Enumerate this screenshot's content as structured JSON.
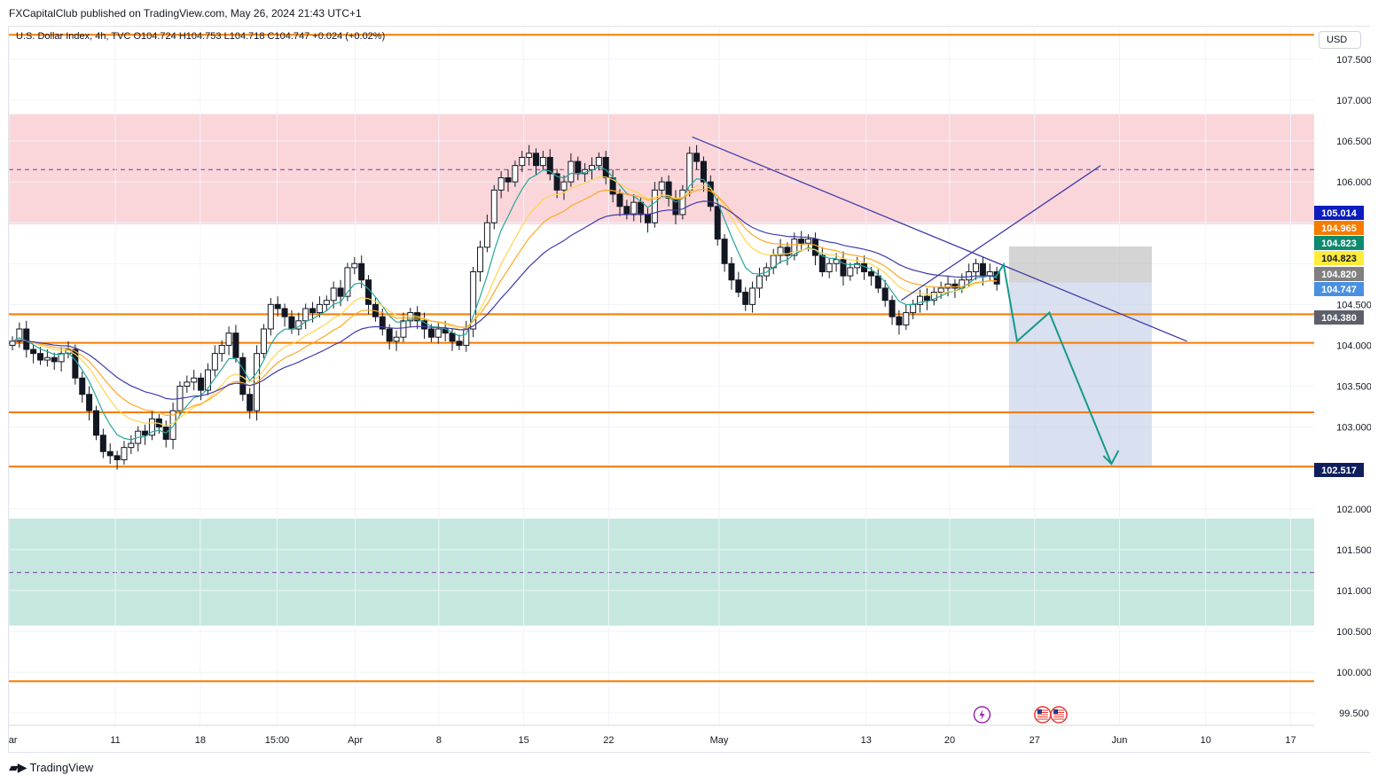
{
  "header": {
    "publisher": "FXCapitalClub published on TradingView.com, May 26, 2024 21:43 UTC+1",
    "symbol_line": "U.S. Dollar Index, 4h, TVC  O104.724  H104.753  L104.718  C104.747  +0.024 (+0.02%)",
    "currency": "USD"
  },
  "footer": {
    "brand": "TradingView"
  },
  "colors": {
    "up": "#131722",
    "down": "#131722",
    "level": "#f57c00",
    "supply": "#f8c8cd",
    "demand": "#b2dfd6",
    "trend": "#3f3bab",
    "projection": "#17998a",
    "target_box": "#c9d3e8",
    "stop_box": "#b0b0b0"
  },
  "chart_data": {
    "type": "candlestick",
    "symbol": "U.S. Dollar Index",
    "interval": "4h",
    "ylim": [
      99.35,
      107.9
    ],
    "price_ticks": [
      99.5,
      100.0,
      100.5,
      101.0,
      101.5,
      102.0,
      102.5,
      103.0,
      103.5,
      104.0,
      104.5,
      105.0,
      105.5,
      106.0,
      106.5,
      107.0,
      107.5
    ],
    "price_tick_labels": [
      "99.500",
      "100.000",
      "100.500",
      "101.000",
      "101.500",
      "102.000",
      "",
      "103.000",
      "103.500",
      "104.000",
      "104.500",
      "",
      "",
      "106.000",
      "106.500",
      "107.000",
      "107.500"
    ],
    "time_labels": [
      {
        "label": "Mar",
        "pos": 0.0
      },
      {
        "label": "11",
        "pos": 0.079
      },
      {
        "label": "18",
        "pos": 0.142
      },
      {
        "label": "15:00",
        "pos": 0.199
      },
      {
        "label": "Apr",
        "pos": 0.257
      },
      {
        "label": "8",
        "pos": 0.319
      },
      {
        "label": "15",
        "pos": 0.382
      },
      {
        "label": "22",
        "pos": 0.445
      },
      {
        "label": "May",
        "pos": 0.527
      },
      {
        "label": "13",
        "pos": 0.636
      },
      {
        "label": "20",
        "pos": 0.698
      },
      {
        "label": "27",
        "pos": 0.761
      },
      {
        "label": "Jun",
        "pos": 0.824
      },
      {
        "label": "10",
        "pos": 0.888
      },
      {
        "label": "17",
        "pos": 0.951
      }
    ],
    "price_badges": [
      {
        "value": "105.014",
        "color": "#0b1dbd"
      },
      {
        "value": "104.965",
        "color": "#f57c00"
      },
      {
        "value": "104.823",
        "color": "#0e8a6e"
      },
      {
        "value": "104.823",
        "color": "#ffeb3b",
        "text": "#131722"
      },
      {
        "value": "104.820",
        "color": "#808080"
      },
      {
        "value": "104.747",
        "color": "#4a90e2"
      },
      {
        "value": "104.380",
        "color": "#5d606b"
      },
      {
        "value": "102.517",
        "color": "#0f1f5c"
      }
    ],
    "horizontal_levels": [
      107.8,
      104.38,
      104.03,
      103.18,
      102.517,
      99.89
    ],
    "zones": [
      {
        "name": "supply",
        "from": 105.48,
        "to": 106.83,
        "mid": 106.15
      },
      {
        "name": "demand",
        "from": 100.57,
        "to": 101.88,
        "mid": 101.22
      }
    ],
    "closes": [
      104.05,
      104.2,
      103.95,
      103.9,
      103.82,
      103.85,
      103.8,
      103.9,
      103.95,
      103.6,
      103.4,
      103.2,
      102.9,
      102.7,
      102.65,
      102.6,
      102.75,
      102.8,
      102.95,
      102.9,
      103.1,
      103.0,
      102.85,
      103.2,
      103.5,
      103.55,
      103.6,
      103.45,
      103.7,
      103.9,
      104.0,
      104.15,
      103.85,
      103.4,
      103.2,
      103.9,
      104.2,
      104.5,
      104.45,
      104.35,
      104.2,
      104.3,
      104.45,
      104.4,
      104.5,
      104.55,
      104.7,
      104.6,
      104.95,
      105.0,
      104.8,
      104.5,
      104.35,
      104.2,
      104.05,
      104.1,
      104.3,
      104.4,
      104.3,
      104.2,
      104.1,
      104.2,
      104.15,
      104.05,
      104.0,
      104.2,
      104.9,
      105.2,
      105.5,
      105.9,
      106.05,
      106.0,
      106.2,
      106.3,
      106.35,
      106.2,
      106.3,
      106.1,
      105.9,
      106.0,
      106.25,
      106.1,
      106.15,
      106.2,
      106.3,
      106.05,
      105.85,
      105.7,
      105.6,
      105.75,
      105.6,
      105.5,
      105.9,
      106.0,
      105.8,
      105.6,
      105.9,
      106.35,
      106.25,
      106.0,
      105.7,
      105.3,
      105.0,
      104.8,
      104.65,
      104.5,
      104.7,
      104.85,
      104.95,
      105.1,
      105.2,
      105.1,
      105.3,
      105.25,
      105.3,
      105.1,
      104.9,
      105.0,
      105.05,
      104.85,
      104.95,
      105.0,
      104.9,
      104.85,
      104.7,
      104.55,
      104.35,
      104.25,
      104.4,
      104.5,
      104.6,
      104.55,
      104.65,
      104.7,
      104.75,
      104.7,
      104.8,
      104.9,
      105.0,
      104.85,
      104.9,
      104.75
    ],
    "indicators": [
      {
        "name": "ema-fast",
        "color": "#26a69a"
      },
      {
        "name": "ema-mid",
        "color": "#ffd54f"
      },
      {
        "name": "ema-slow",
        "color": "#ffa726"
      },
      {
        "name": "ema-long",
        "color": "#3f3bab"
      }
    ],
    "trendlines": [
      {
        "kind": "resistance",
        "from": {
          "x": 0.507,
          "y": 106.55
        },
        "to": {
          "x": 0.874,
          "y": 104.05
        }
      },
      {
        "kind": "rising",
        "from": {
          "x": 0.662,
          "y": 104.55
        },
        "to": {
          "x": 0.81,
          "y": 106.2
        }
      }
    ],
    "projection": [
      {
        "x": 0.732,
        "y": 104.83
      },
      {
        "x": 0.738,
        "y": 104.99
      },
      {
        "x": 0.748,
        "y": 104.05
      },
      {
        "x": 0.772,
        "y": 104.4
      },
      {
        "x": 0.818,
        "y": 102.55
      },
      {
        "x": 0.82,
        "y": 102.7
      }
    ],
    "position_box": {
      "x_from": 0.742,
      "x_to": 0.848,
      "entry": 104.77,
      "stop": 104.38,
      "target": 102.517
    },
    "event_icons": [
      {
        "name": "flash-icon",
        "x": 0.722,
        "color": "#9c27b0"
      },
      {
        "name": "us-flag-icon",
        "x": 0.767
      },
      {
        "name": "us-flag-icon",
        "x": 0.779
      }
    ]
  }
}
